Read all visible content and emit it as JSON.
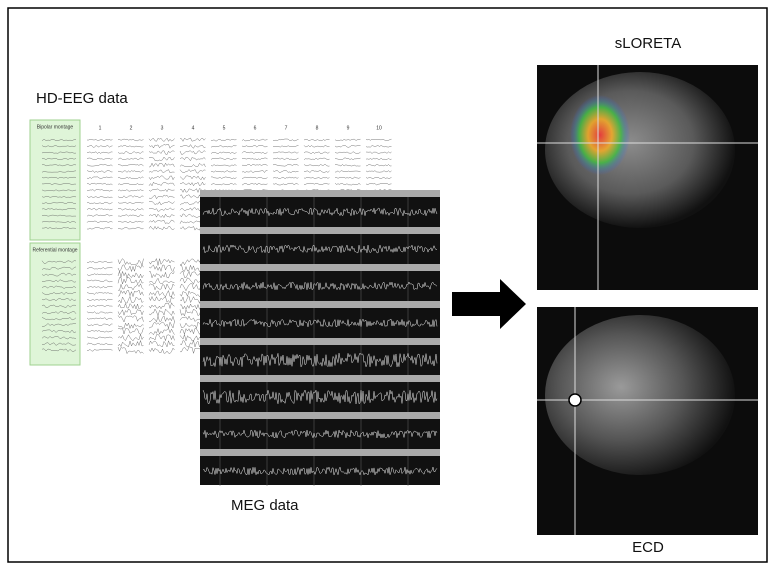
{
  "labels": {
    "eeg": "HD-EEG data",
    "meg": "MEG data",
    "sloreta": "sLORETA",
    "ecd": "ECD"
  },
  "eeg_panel": {
    "bipolar": "Bipolar montage",
    "referential": "Referential montage",
    "columns": [
      "1",
      "2",
      "3",
      "4",
      "5",
      "6",
      "7",
      "8",
      "9",
      "10"
    ]
  }
}
